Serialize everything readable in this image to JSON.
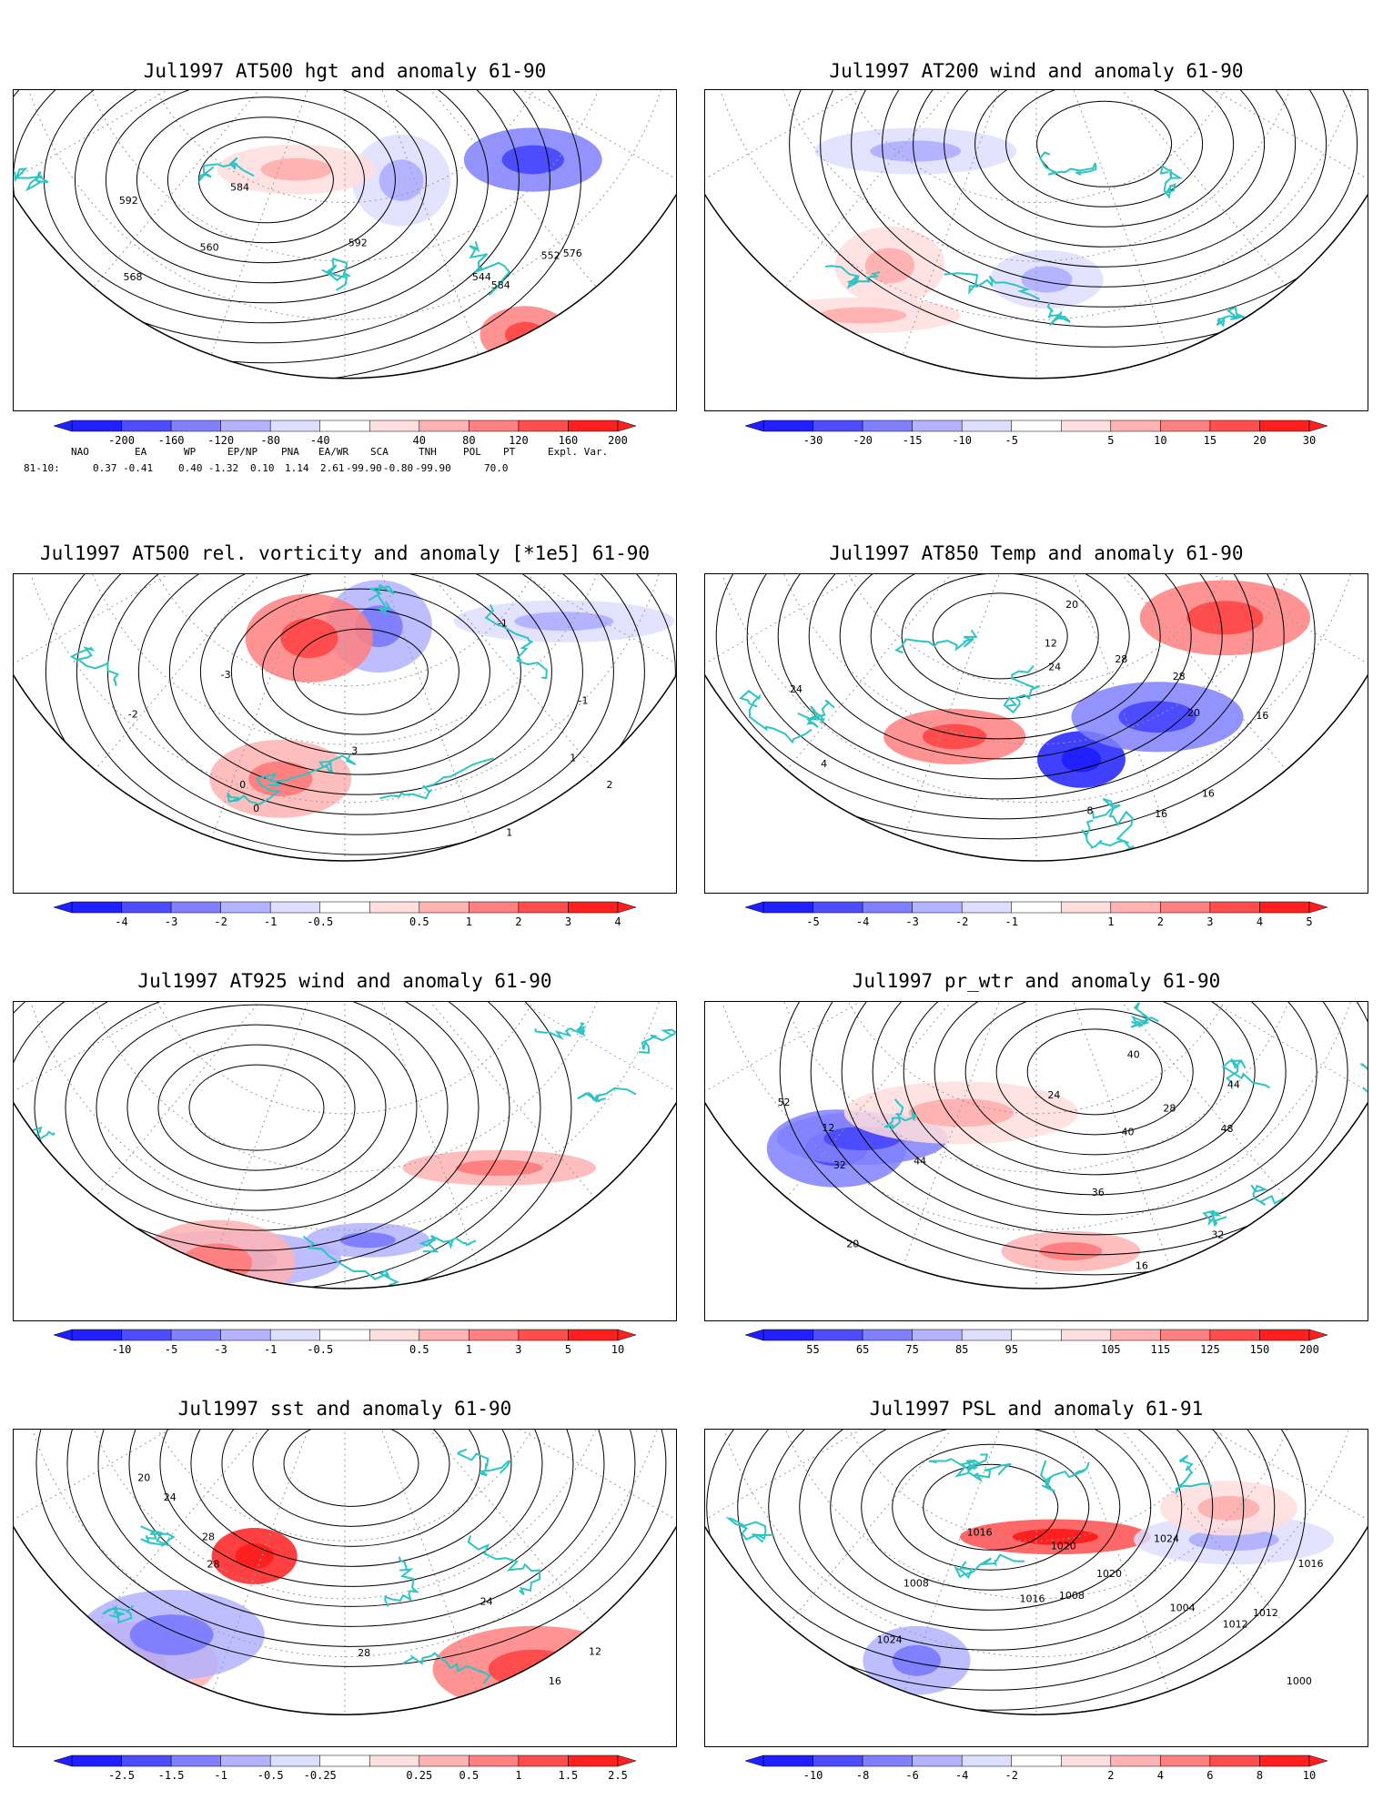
{
  "colors": {
    "coast": "#2ec4c4",
    "contour": "#000000",
    "grid": "#9a9a9a",
    "neg": [
      "#1f1fff",
      "#4d4dff",
      "#8080ff",
      "#b3b3ff",
      "#dedeff"
    ],
    "pos": [
      "#ffdede",
      "#ffb3b3",
      "#ff8080",
      "#ff4d4d",
      "#ff1f1f"
    ]
  },
  "panels": [
    {
      "id": "z500",
      "title": "Jul1997 AT500 hgt and anomaly 61-90",
      "ticks": [
        "-200",
        "-160",
        "-120",
        "-80",
        "-40",
        "40",
        "80",
        "120",
        "160",
        "200"
      ],
      "contour_labels": [
        "552",
        "544",
        "560",
        "568",
        "576",
        "584",
        "592",
        "592",
        "584"
      ],
      "anomaly_blobs": [
        {
          "sign": "pos",
          "level": 3
        },
        {
          "sign": "neg",
          "level": 3
        },
        {
          "sign": "neg",
          "level": 1
        },
        {
          "sign": "pos",
          "level": 1
        }
      ]
    },
    {
      "id": "w200",
      "title": "Jul1997 AT200 wind and anomaly 61-90",
      "ticks": [
        "-30",
        "-20",
        "-15",
        "-10",
        "-5",
        "5",
        "10",
        "15",
        "20",
        "30"
      ],
      "contour_labels": [],
      "anomaly_blobs": [
        {
          "sign": "pos",
          "level": 1
        },
        {
          "sign": "neg",
          "level": 1
        },
        {
          "sign": "neg",
          "level": 1
        },
        {
          "sign": "pos",
          "level": 1
        }
      ]
    },
    {
      "id": "vort500",
      "title": "Jul1997 AT500 rel. vorticity and anomaly [*1e5] 61-90",
      "ticks": [
        "-4",
        "-3",
        "-2",
        "-1",
        "-0.5",
        "0.5",
        "1",
        "2",
        "3",
        "4"
      ],
      "contour_labels": [
        "0",
        "-1",
        "1",
        "-2",
        "2",
        "-3",
        "3",
        "0",
        "-1",
        "1"
      ],
      "anomaly_blobs": [
        {
          "sign": "pos",
          "level": 2
        },
        {
          "sign": "neg",
          "level": 2
        },
        {
          "sign": "pos",
          "level": 3
        },
        {
          "sign": "neg",
          "level": 1
        }
      ]
    },
    {
      "id": "t850",
      "title": "Jul1997 AT850 Temp and anomaly 61-90",
      "ticks": [
        "-5",
        "-4",
        "-3",
        "-2",
        "-1",
        "1",
        "2",
        "3",
        "4",
        "5"
      ],
      "contour_labels": [
        "20",
        "16",
        "4",
        "8",
        "24",
        "28",
        "12",
        "16",
        "24",
        "28",
        "20",
        "16"
      ],
      "anomaly_blobs": [
        {
          "sign": "neg",
          "level": 5
        },
        {
          "sign": "pos",
          "level": 3
        },
        {
          "sign": "pos",
          "level": 3
        },
        {
          "sign": "neg",
          "level": 3
        }
      ]
    },
    {
      "id": "w925",
      "title": "Jul1997 AT925 wind and anomaly 61-90",
      "ticks": [
        "-10",
        "-5",
        "-3",
        "-1",
        "-0.5",
        "0.5",
        "1",
        "3",
        "5",
        "10"
      ],
      "contour_labels": [],
      "anomaly_blobs": [
        {
          "sign": "pos",
          "level": 2
        },
        {
          "sign": "neg",
          "level": 2
        },
        {
          "sign": "pos",
          "level": 2
        },
        {
          "sign": "neg",
          "level": 2
        }
      ]
    },
    {
      "id": "prwtr",
      "title": "Jul1997 pr_wtr and anomaly 61-90",
      "ticks": [
        "55",
        "65",
        "75",
        "85",
        "95",
        "105",
        "115",
        "125",
        "150",
        "200"
      ],
      "contour_labels": [
        "52",
        "44",
        "40",
        "36",
        "32",
        "28",
        "24",
        "20",
        "16",
        "12",
        "44",
        "48",
        "40",
        "32"
      ],
      "anomaly_blobs": [
        {
          "sign": "neg",
          "level": 3
        },
        {
          "sign": "pos",
          "level": 2
        },
        {
          "sign": "neg",
          "level": 3
        },
        {
          "sign": "pos",
          "level": 1
        }
      ]
    },
    {
      "id": "sst",
      "title": "Jul1997 sst and anomaly 61-90",
      "ticks": [
        "-2.5",
        "-1.5",
        "-1",
        "-0.5",
        "-0.25",
        "0.25",
        "0.5",
        "1",
        "1.5",
        "2.5"
      ],
      "contour_labels": [
        "28",
        "16",
        "12",
        "20",
        "24",
        "28",
        "28",
        "24"
      ],
      "anomaly_blobs": [
        {
          "sign": "pos",
          "level": 5
        },
        {
          "sign": "pos",
          "level": 3
        },
        {
          "sign": "pos",
          "level": 2
        },
        {
          "sign": "neg",
          "level": 2
        }
      ]
    },
    {
      "id": "psl",
      "title": "Jul1997 PSL and anomaly 61-91",
      "ticks": [
        "-10",
        "-8",
        "-6",
        "-4",
        "-2",
        "2",
        "4",
        "6",
        "8",
        "10"
      ],
      "contour_labels": [
        "1016",
        "1012",
        "1008",
        "1020",
        "1024",
        "1024",
        "1020",
        "1016",
        "1012",
        "1008",
        "1004",
        "1000",
        "1016"
      ],
      "anomaly_blobs": [
        {
          "sign": "pos",
          "level": 4
        },
        {
          "sign": "neg",
          "level": 2
        },
        {
          "sign": "neg",
          "level": 1
        },
        {
          "sign": "pos",
          "level": 1
        }
      ]
    }
  ],
  "teleconnections": {
    "headers": [
      "NAO",
      "EA",
      "WP",
      "EP/NP",
      "PNA",
      "EA/WR",
      "SCA",
      "TNH",
      "POL",
      "PT",
      "Expl. Var."
    ],
    "row_label": "81-10:",
    "values": [
      "0.37",
      "-0.41",
      "0.40",
      "-1.32",
      "0.10",
      "1.14",
      "2.61",
      "-99.90",
      "-0.80",
      "-99.90",
      "70.0"
    ]
  }
}
